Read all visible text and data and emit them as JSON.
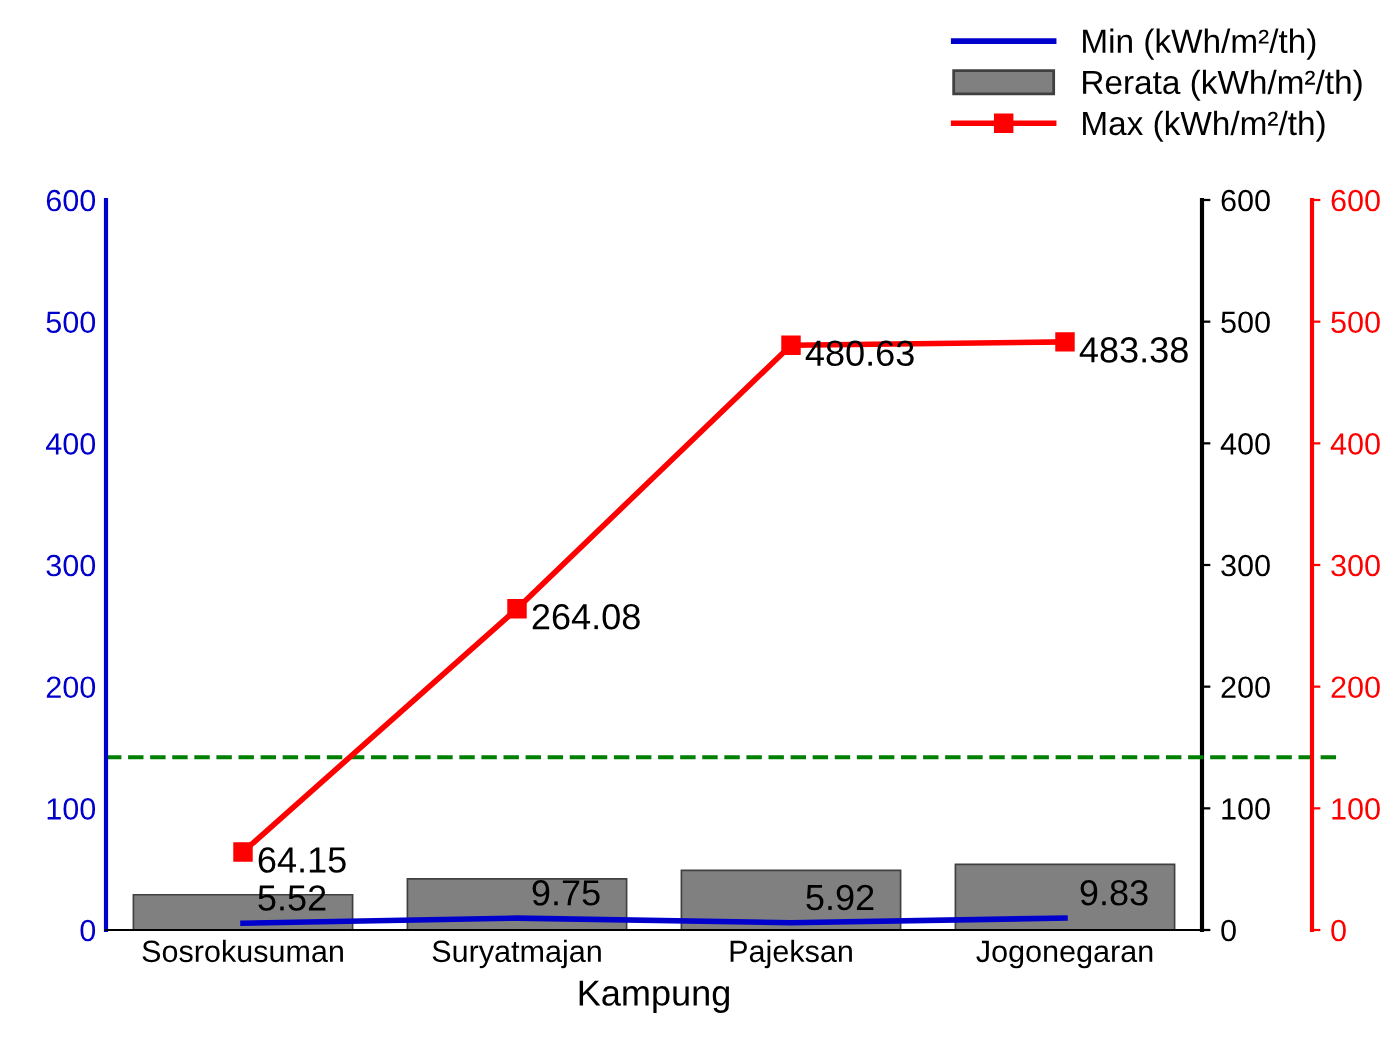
{
  "chart_data": {
    "type": "bar",
    "xlabel": "Kampung",
    "categories": [
      "Sosrokusuman",
      "Suryatmajan",
      "Pajeksan",
      "Jogonegaran"
    ],
    "series": [
      {
        "name": "Min (kWh/m²/th)",
        "type": "line",
        "color": "#0000cc",
        "axis": "y",
        "marker": "none",
        "values": [
          5.52,
          9.75,
          5.92,
          9.83
        ],
        "value_labels": [
          "5.52",
          "9.75",
          "5.92",
          "9.83"
        ]
      },
      {
        "name": "Rerata (kWh/m²/th)",
        "color": "#808080",
        "axis": "y2",
        "values": [
          29,
          42,
          49,
          54
        ]
      },
      {
        "name": "Max (kWh/m²/th)",
        "type": "line",
        "color": "#ff0000",
        "axis": "y3",
        "marker": "square",
        "values": [
          64.15,
          264.08,
          480.63,
          483.38
        ],
        "value_labels": [
          "64.15",
          "264.08",
          "480.63",
          "483.38"
        ]
      }
    ],
    "ylim": [
      0,
      600
    ],
    "yticks": [
      0,
      100,
      200,
      300,
      400,
      500,
      600
    ],
    "y2lim": [
      0,
      600
    ],
    "y2ticks": [
      0,
      100,
      200,
      300,
      400,
      500,
      600
    ],
    "y3lim": [
      0,
      600
    ],
    "y3ticks": [
      0,
      100,
      200,
      300,
      400,
      500,
      600
    ],
    "ref_lines": [
      {
        "axis": "y",
        "value": 142,
        "color": "#008000",
        "line_style": "dashed"
      }
    ],
    "grid": false,
    "legend": "top right"
  }
}
